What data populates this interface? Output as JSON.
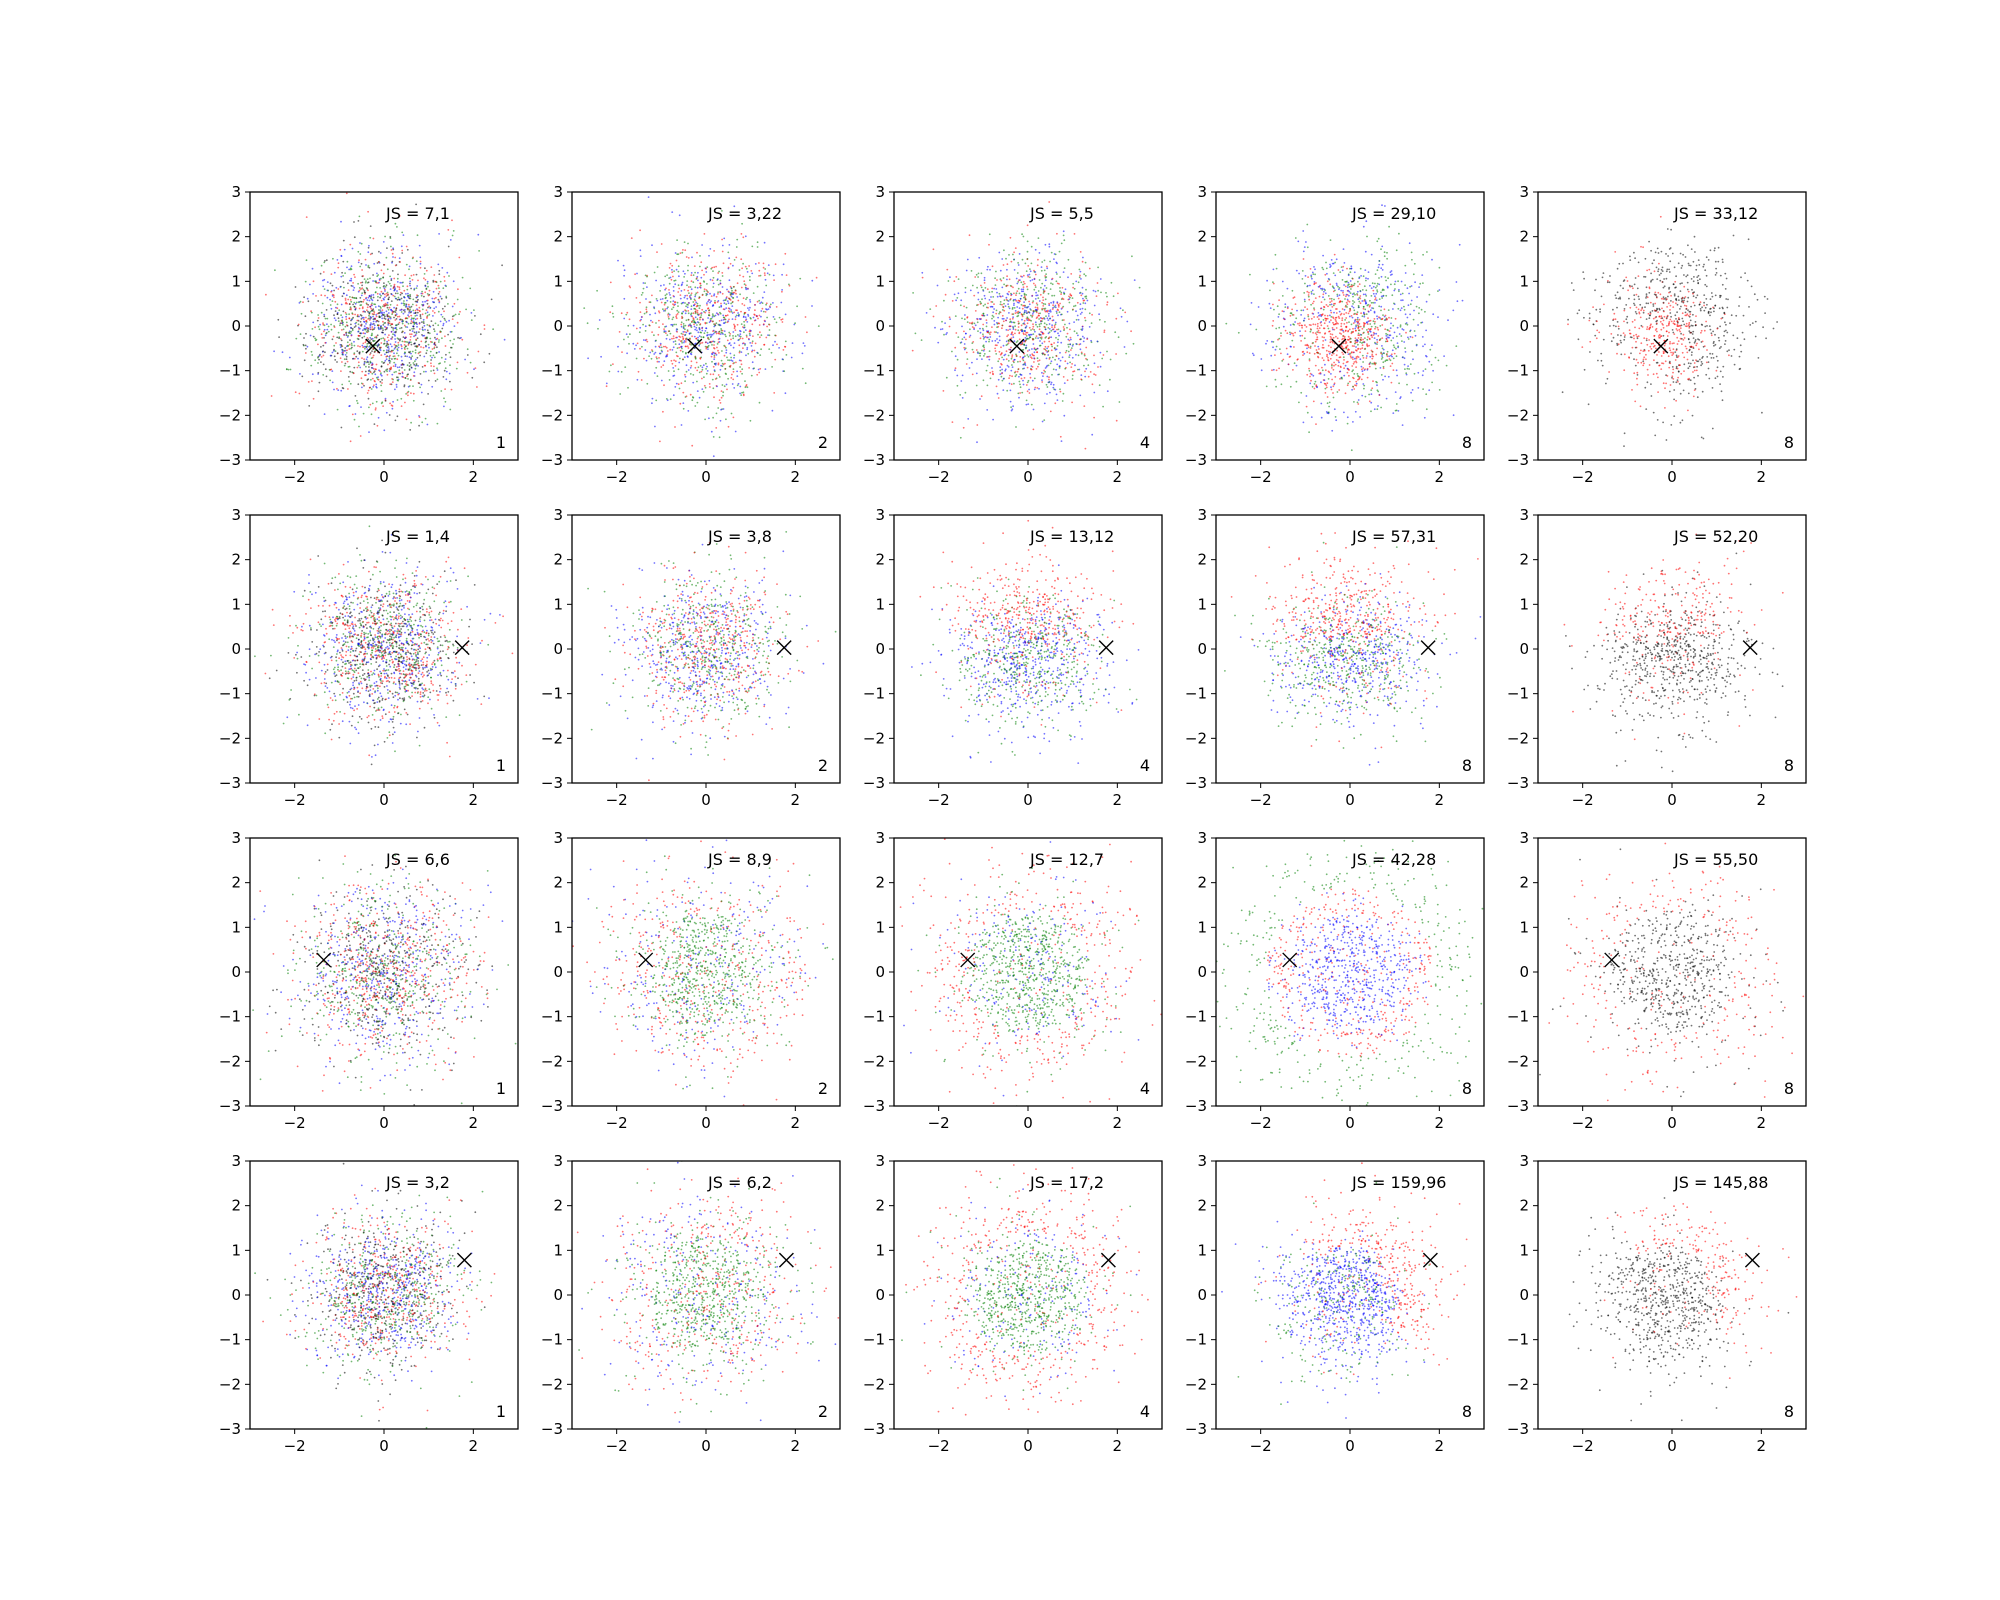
{
  "chart_data": {
    "type": "scatter",
    "layout": "4 rows x 5 columns grid of scatter panels",
    "xlim": [
      -3,
      3
    ],
    "ylim": [
      -3,
      3
    ],
    "xticks": [
      -2,
      0,
      2
    ],
    "yticks": [
      -3,
      -2,
      -1,
      0,
      1,
      2,
      3
    ],
    "grid": false,
    "legend": "none",
    "colors": {
      "red": "#ff0000",
      "blue": "#0000ff",
      "green": "#008000",
      "black": "#000000"
    },
    "markers": [
      {
        "row": 1,
        "x": -0.25,
        "y": -0.45
      },
      {
        "row": 2,
        "x": 1.75,
        "y": 0.03
      },
      {
        "row": 3,
        "x": -1.35,
        "y": 0.27
      },
      {
        "row": 4,
        "x": 1.8,
        "y": 0.78
      }
    ],
    "panels": [
      {
        "row": 1,
        "col": 1,
        "js": "JS = 7,1",
        "k": "1",
        "pattern": "mixed",
        "colors": [
          "red",
          "blue",
          "green",
          "black"
        ]
      },
      {
        "row": 1,
        "col": 2,
        "js": "JS = 3,22",
        "k": "2",
        "pattern": "mixed",
        "colors": [
          "red",
          "blue",
          "green"
        ]
      },
      {
        "row": 1,
        "col": 3,
        "js": "JS = 5,5",
        "k": "4",
        "pattern": "mixed",
        "colors": [
          "red",
          "blue",
          "green"
        ]
      },
      {
        "row": 1,
        "col": 4,
        "js": "JS = 29,10",
        "k": "8",
        "pattern": "left-red",
        "colors": [
          "red",
          "blue",
          "green"
        ]
      },
      {
        "row": 1,
        "col": 5,
        "js": "JS = 33,12",
        "k": "8",
        "pattern": "left-red",
        "colors": [
          "red",
          "black"
        ]
      },
      {
        "row": 2,
        "col": 1,
        "js": "JS = 1,4",
        "k": "1",
        "pattern": "mixed",
        "colors": [
          "red",
          "blue",
          "green",
          "black"
        ]
      },
      {
        "row": 2,
        "col": 2,
        "js": "JS = 3,8",
        "k": "2",
        "pattern": "mixed",
        "colors": [
          "red",
          "blue",
          "green"
        ]
      },
      {
        "row": 2,
        "col": 3,
        "js": "JS = 13,12",
        "k": "4",
        "pattern": "top-red",
        "colors": [
          "red",
          "blue",
          "green"
        ]
      },
      {
        "row": 2,
        "col": 4,
        "js": "JS = 57,31",
        "k": "8",
        "pattern": "top-red",
        "colors": [
          "red",
          "blue",
          "green"
        ]
      },
      {
        "row": 2,
        "col": 5,
        "js": "JS = 52,20",
        "k": "8",
        "pattern": "top-red",
        "colors": [
          "red",
          "black"
        ]
      },
      {
        "row": 3,
        "col": 1,
        "js": "JS = 6,6",
        "k": "1",
        "pattern": "mixed-wide",
        "colors": [
          "red",
          "blue",
          "green",
          "black"
        ]
      },
      {
        "row": 3,
        "col": 2,
        "js": "JS = 8,9",
        "k": "2",
        "pattern": "ring-soft",
        "colors": [
          "red",
          "blue",
          "green"
        ]
      },
      {
        "row": 3,
        "col": 3,
        "js": "JS = 12,7",
        "k": "4",
        "pattern": "ring",
        "colors": [
          "red",
          "blue",
          "green"
        ]
      },
      {
        "row": 3,
        "col": 4,
        "js": "JS = 42,28",
        "k": "8",
        "pattern": "ring-outer",
        "colors": [
          "red",
          "blue",
          "green"
        ]
      },
      {
        "row": 3,
        "col": 5,
        "js": "JS = 55,50",
        "k": "8",
        "pattern": "ring",
        "colors": [
          "red",
          "black"
        ]
      },
      {
        "row": 4,
        "col": 1,
        "js": "JS = 3,2",
        "k": "1",
        "pattern": "mixed",
        "colors": [
          "red",
          "blue",
          "green",
          "black"
        ]
      },
      {
        "row": 4,
        "col": 2,
        "js": "JS = 6,2",
        "k": "2",
        "pattern": "ring-soft",
        "colors": [
          "red",
          "blue",
          "green"
        ]
      },
      {
        "row": 4,
        "col": 3,
        "js": "JS = 17,2",
        "k": "4",
        "pattern": "ring",
        "colors": [
          "red",
          "blue",
          "green"
        ]
      },
      {
        "row": 4,
        "col": 4,
        "js": "JS = 159,96",
        "k": "8",
        "pattern": "right-red",
        "colors": [
          "red",
          "blue",
          "green"
        ]
      },
      {
        "row": 4,
        "col": 5,
        "js": "JS = 145,88",
        "k": "8",
        "pattern": "right-red",
        "colors": [
          "red",
          "black"
        ]
      }
    ]
  }
}
